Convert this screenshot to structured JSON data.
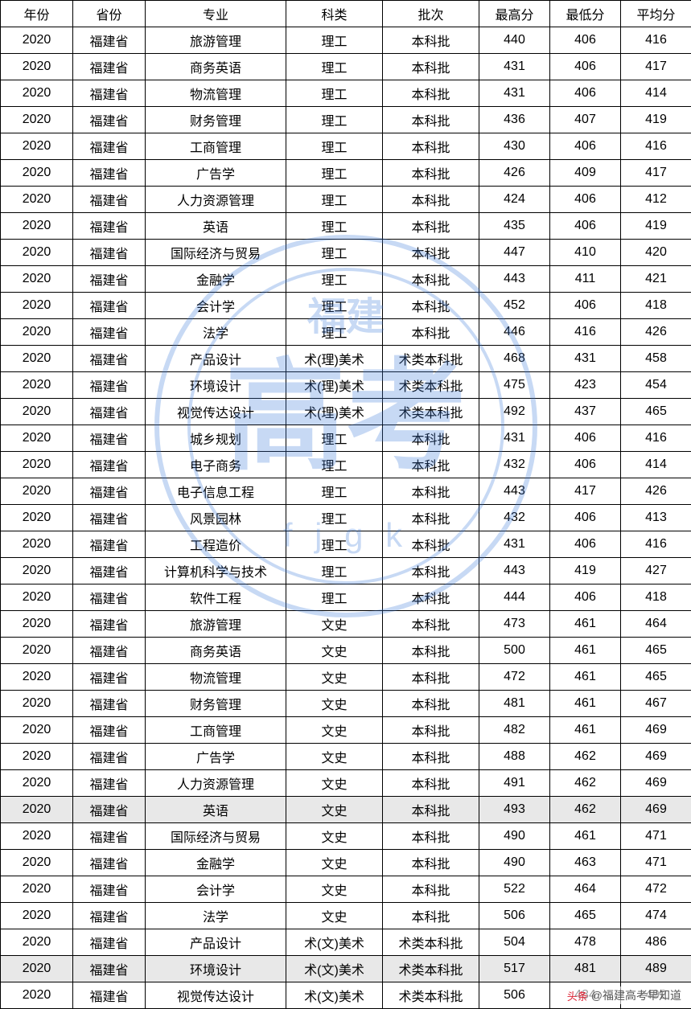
{
  "table": {
    "columns": [
      "年份",
      "省份",
      "专业",
      "科类",
      "批次",
      "最高分",
      "最低分",
      "平均分"
    ],
    "rows": [
      {
        "hl": false,
        "cells": [
          "2020",
          "福建省",
          "旅游管理",
          "理工",
          "本科批",
          "440",
          "406",
          "416"
        ]
      },
      {
        "hl": false,
        "cells": [
          "2020",
          "福建省",
          "商务英语",
          "理工",
          "本科批",
          "431",
          "406",
          "417"
        ]
      },
      {
        "hl": false,
        "cells": [
          "2020",
          "福建省",
          "物流管理",
          "理工",
          "本科批",
          "431",
          "406",
          "414"
        ]
      },
      {
        "hl": false,
        "cells": [
          "2020",
          "福建省",
          "财务管理",
          "理工",
          "本科批",
          "436",
          "407",
          "419"
        ]
      },
      {
        "hl": false,
        "cells": [
          "2020",
          "福建省",
          "工商管理",
          "理工",
          "本科批",
          "430",
          "406",
          "416"
        ]
      },
      {
        "hl": false,
        "cells": [
          "2020",
          "福建省",
          "广告学",
          "理工",
          "本科批",
          "426",
          "409",
          "417"
        ]
      },
      {
        "hl": false,
        "cells": [
          "2020",
          "福建省",
          "人力资源管理",
          "理工",
          "本科批",
          "424",
          "406",
          "412"
        ]
      },
      {
        "hl": false,
        "cells": [
          "2020",
          "福建省",
          "英语",
          "理工",
          "本科批",
          "435",
          "406",
          "419"
        ]
      },
      {
        "hl": false,
        "cells": [
          "2020",
          "福建省",
          "国际经济与贸易",
          "理工",
          "本科批",
          "447",
          "410",
          "420"
        ]
      },
      {
        "hl": false,
        "cells": [
          "2020",
          "福建省",
          "金融学",
          "理工",
          "本科批",
          "443",
          "411",
          "421"
        ]
      },
      {
        "hl": false,
        "cells": [
          "2020",
          "福建省",
          "会计学",
          "理工",
          "本科批",
          "452",
          "406",
          "418"
        ]
      },
      {
        "hl": false,
        "cells": [
          "2020",
          "福建省",
          "法学",
          "理工",
          "本科批",
          "446",
          "416",
          "426"
        ]
      },
      {
        "hl": false,
        "cells": [
          "2020",
          "福建省",
          "产品设计",
          "术(理)美术",
          "术类本科批",
          "468",
          "431",
          "458"
        ]
      },
      {
        "hl": false,
        "cells": [
          "2020",
          "福建省",
          "环境设计",
          "术(理)美术",
          "术类本科批",
          "475",
          "423",
          "454"
        ]
      },
      {
        "hl": false,
        "cells": [
          "2020",
          "福建省",
          "视觉传达设计",
          "术(理)美术",
          "术类本科批",
          "492",
          "437",
          "465"
        ]
      },
      {
        "hl": false,
        "cells": [
          "2020",
          "福建省",
          "城乡规划",
          "理工",
          "本科批",
          "431",
          "406",
          "416"
        ]
      },
      {
        "hl": false,
        "cells": [
          "2020",
          "福建省",
          "电子商务",
          "理工",
          "本科批",
          "432",
          "406",
          "414"
        ]
      },
      {
        "hl": false,
        "cells": [
          "2020",
          "福建省",
          "电子信息工程",
          "理工",
          "本科批",
          "443",
          "417",
          "426"
        ]
      },
      {
        "hl": false,
        "cells": [
          "2020",
          "福建省",
          "风景园林",
          "理工",
          "本科批",
          "432",
          "406",
          "413"
        ]
      },
      {
        "hl": false,
        "cells": [
          "2020",
          "福建省",
          "工程造价",
          "理工",
          "本科批",
          "431",
          "406",
          "416"
        ]
      },
      {
        "hl": false,
        "cells": [
          "2020",
          "福建省",
          "计算机科学与技术",
          "理工",
          "本科批",
          "443",
          "419",
          "427"
        ]
      },
      {
        "hl": false,
        "cells": [
          "2020",
          "福建省",
          "软件工程",
          "理工",
          "本科批",
          "444",
          "406",
          "418"
        ]
      },
      {
        "hl": false,
        "cells": [
          "2020",
          "福建省",
          "旅游管理",
          "文史",
          "本科批",
          "473",
          "461",
          "464"
        ]
      },
      {
        "hl": false,
        "cells": [
          "2020",
          "福建省",
          "商务英语",
          "文史",
          "本科批",
          "500",
          "461",
          "465"
        ]
      },
      {
        "hl": false,
        "cells": [
          "2020",
          "福建省",
          "物流管理",
          "文史",
          "本科批",
          "472",
          "461",
          "465"
        ]
      },
      {
        "hl": false,
        "cells": [
          "2020",
          "福建省",
          "财务管理",
          "文史",
          "本科批",
          "481",
          "461",
          "467"
        ]
      },
      {
        "hl": false,
        "cells": [
          "2020",
          "福建省",
          "工商管理",
          "文史",
          "本科批",
          "482",
          "461",
          "469"
        ]
      },
      {
        "hl": false,
        "cells": [
          "2020",
          "福建省",
          "广告学",
          "文史",
          "本科批",
          "488",
          "462",
          "469"
        ]
      },
      {
        "hl": false,
        "cells": [
          "2020",
          "福建省",
          "人力资源管理",
          "文史",
          "本科批",
          "491",
          "462",
          "469"
        ]
      },
      {
        "hl": true,
        "cells": [
          "2020",
          "福建省",
          "英语",
          "文史",
          "本科批",
          "493",
          "462",
          "469"
        ]
      },
      {
        "hl": false,
        "cells": [
          "2020",
          "福建省",
          "国际经济与贸易",
          "文史",
          "本科批",
          "490",
          "461",
          "471"
        ]
      },
      {
        "hl": false,
        "cells": [
          "2020",
          "福建省",
          "金融学",
          "文史",
          "本科批",
          "490",
          "463",
          "471"
        ]
      },
      {
        "hl": false,
        "cells": [
          "2020",
          "福建省",
          "会计学",
          "文史",
          "本科批",
          "522",
          "464",
          "472"
        ]
      },
      {
        "hl": false,
        "cells": [
          "2020",
          "福建省",
          "法学",
          "文史",
          "本科批",
          "506",
          "465",
          "474"
        ]
      },
      {
        "hl": false,
        "cells": [
          "2020",
          "福建省",
          "产品设计",
          "术(文)美术",
          "术类本科批",
          "504",
          "478",
          "486"
        ]
      },
      {
        "hl": true,
        "cells": [
          "2020",
          "福建省",
          "环境设计",
          "术(文)美术",
          "术类本科批",
          "517",
          "481",
          "489"
        ]
      },
      {
        "hl": false,
        "cells": [
          "2020",
          "福建省",
          "视觉传达设计",
          "术(文)美术",
          "术类本科批",
          "506",
          "484",
          "492"
        ]
      }
    ]
  },
  "watermark": {
    "color": "#3a78d8",
    "text_top": "福建",
    "text_mid": "高考",
    "text_bottom": "f j  g k"
  },
  "footer": {
    "icon": "头条",
    "text": "@福建高考早知道"
  }
}
